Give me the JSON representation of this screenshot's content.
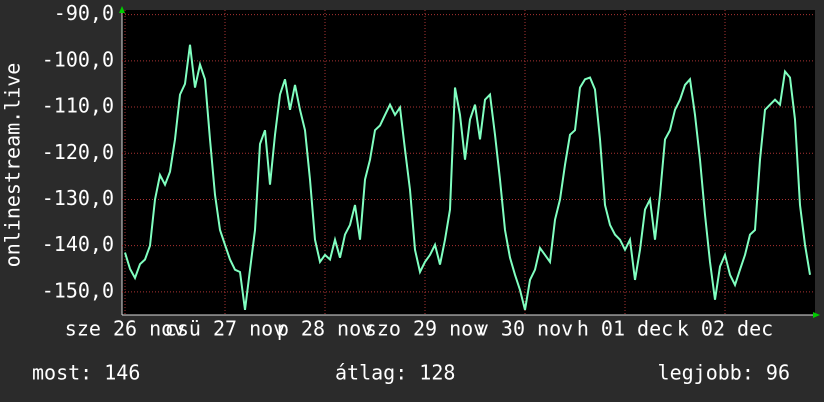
{
  "chart_data": {
    "type": "line",
    "ylabel": "onlinestream.live",
    "annotations": [
      "most: 146",
      "átlag: 128",
      "legjobb: 96"
    ],
    "xlim": [
      25.97,
      32.9
    ],
    "ylim": [
      -155,
      -89
    ],
    "xticks": [
      {
        "value": 26,
        "label": "sze 26 nov"
      },
      {
        "value": 27,
        "label": "csü 27 nov"
      },
      {
        "value": 28,
        "label": "p 28 nov"
      },
      {
        "value": 29,
        "label": "szo 29 nov"
      },
      {
        "value": 30,
        "label": "v 30 nov"
      },
      {
        "value": 31,
        "label": "h 01 dec"
      },
      {
        "value": 32,
        "label": "k 02 dec"
      }
    ],
    "yticks": [
      {
        "value": -90,
        "label": "-90,0"
      },
      {
        "value": -100,
        "label": "-100,0"
      },
      {
        "value": -110,
        "label": "-110,0"
      },
      {
        "value": -120,
        "label": "-120,0"
      },
      {
        "value": -130,
        "label": "-130,0"
      },
      {
        "value": -140,
        "label": "-140,0"
      },
      {
        "value": -150,
        "label": "-150,0"
      }
    ],
    "grid": true,
    "x": [
      26,
      26.05,
      26.1,
      26.15,
      26.2,
      26.25,
      26.3,
      26.35,
      26.4,
      26.45,
      26.5,
      26.55,
      26.6,
      26.65,
      26.7,
      26.75,
      26.8,
      26.85,
      26.9,
      26.95,
      27,
      27.05,
      27.1,
      27.15,
      27.2,
      27.25,
      27.3,
      27.35,
      27.4,
      27.45,
      27.5,
      27.55,
      27.6,
      27.65,
      27.7,
      27.75,
      27.8,
      27.85,
      27.9,
      27.95,
      28,
      28.05,
      28.1,
      28.15,
      28.2,
      28.25,
      28.3,
      28.35,
      28.4,
      28.45,
      28.5,
      28.55,
      28.6,
      28.65,
      28.7,
      28.75,
      28.8,
      28.85,
      28.9,
      28.95,
      29,
      29.05,
      29.1,
      29.15,
      29.2,
      29.25,
      29.3,
      29.35,
      29.4,
      29.45,
      29.5,
      29.55,
      29.6,
      29.65,
      29.7,
      29.75,
      29.8,
      29.85,
      29.9,
      29.95,
      30,
      30.05,
      30.1,
      30.15,
      30.2,
      30.25,
      30.3,
      30.35,
      30.4,
      30.45,
      30.5,
      30.55,
      30.6,
      30.65,
      30.7,
      30.75,
      30.8,
      30.85,
      30.9,
      30.95,
      31,
      31.05,
      31.1,
      31.15,
      31.2,
      31.25,
      31.3,
      31.35,
      31.4,
      31.45,
      31.5,
      31.55,
      31.6,
      31.65,
      31.7,
      31.75,
      31.8,
      31.85,
      31.9,
      31.95,
      32,
      32.05,
      32.1,
      32.15,
      32.2,
      32.25,
      32.3,
      32.35,
      32.4,
      32.45,
      32.5,
      32.55,
      32.6,
      32.65,
      32.7,
      32.75,
      32.8,
      32.85
    ],
    "series": [
      {
        "color": "#80ffc0",
        "values": [
          -141.5,
          -145,
          -147,
          -144,
          -143,
          -140,
          -130,
          -124.7,
          -126.8,
          -124,
          -117,
          -107.3,
          -105,
          -96.5,
          -105.8,
          -100.8,
          -104,
          -117,
          -129,
          -136.6,
          -139.8,
          -143,
          -145.2,
          -145.7,
          -153.9,
          -145.2,
          -136.6,
          -118,
          -115,
          -126.8,
          -116,
          -107.3,
          -104,
          -110.6,
          -105.2,
          -110.6,
          -115,
          -125.7,
          -138.7,
          -143.5,
          -142,
          -143,
          -138.7,
          -142.6,
          -137.6,
          -135.5,
          -131.2,
          -138.7,
          -125.7,
          -121.4,
          -115,
          -114,
          -111.7,
          -109.5,
          -111.7,
          -110.1,
          -119.2,
          -127.9,
          -140.9,
          -145.7,
          -143.5,
          -142,
          -139.8,
          -144.1,
          -138.7,
          -132.2,
          -105.8,
          -111.7,
          -121.4,
          -112.7,
          -109.5,
          -117,
          -108.4,
          -107.3,
          -116,
          -125.7,
          -136.6,
          -142.6,
          -146.3,
          -149.6,
          -153.9,
          -147.4,
          -145.2,
          -140.5,
          -142,
          -143.5,
          -134.4,
          -130,
          -122.5,
          -116,
          -115,
          -105.8,
          -104,
          -103.6,
          -106.2,
          -117,
          -131.2,
          -135.5,
          -137.6,
          -138.7,
          -140.9,
          -138.7,
          -147.4,
          -140.9,
          -132.2,
          -130,
          -138.7,
          -129,
          -117,
          -115,
          -110.6,
          -108.4,
          -105.2,
          -104,
          -111.7,
          -121.4,
          -133.3,
          -143.5,
          -151.7,
          -144.5,
          -142,
          -146.3,
          -148.5,
          -145.2,
          -142,
          -137.6,
          -136.6,
          -121.4,
          -110.6,
          -109.5,
          -108.4,
          -109.5,
          -102.3,
          -103.6,
          -112.7,
          -131.2,
          -139.8,
          -146.3
        ]
      }
    ]
  }
}
